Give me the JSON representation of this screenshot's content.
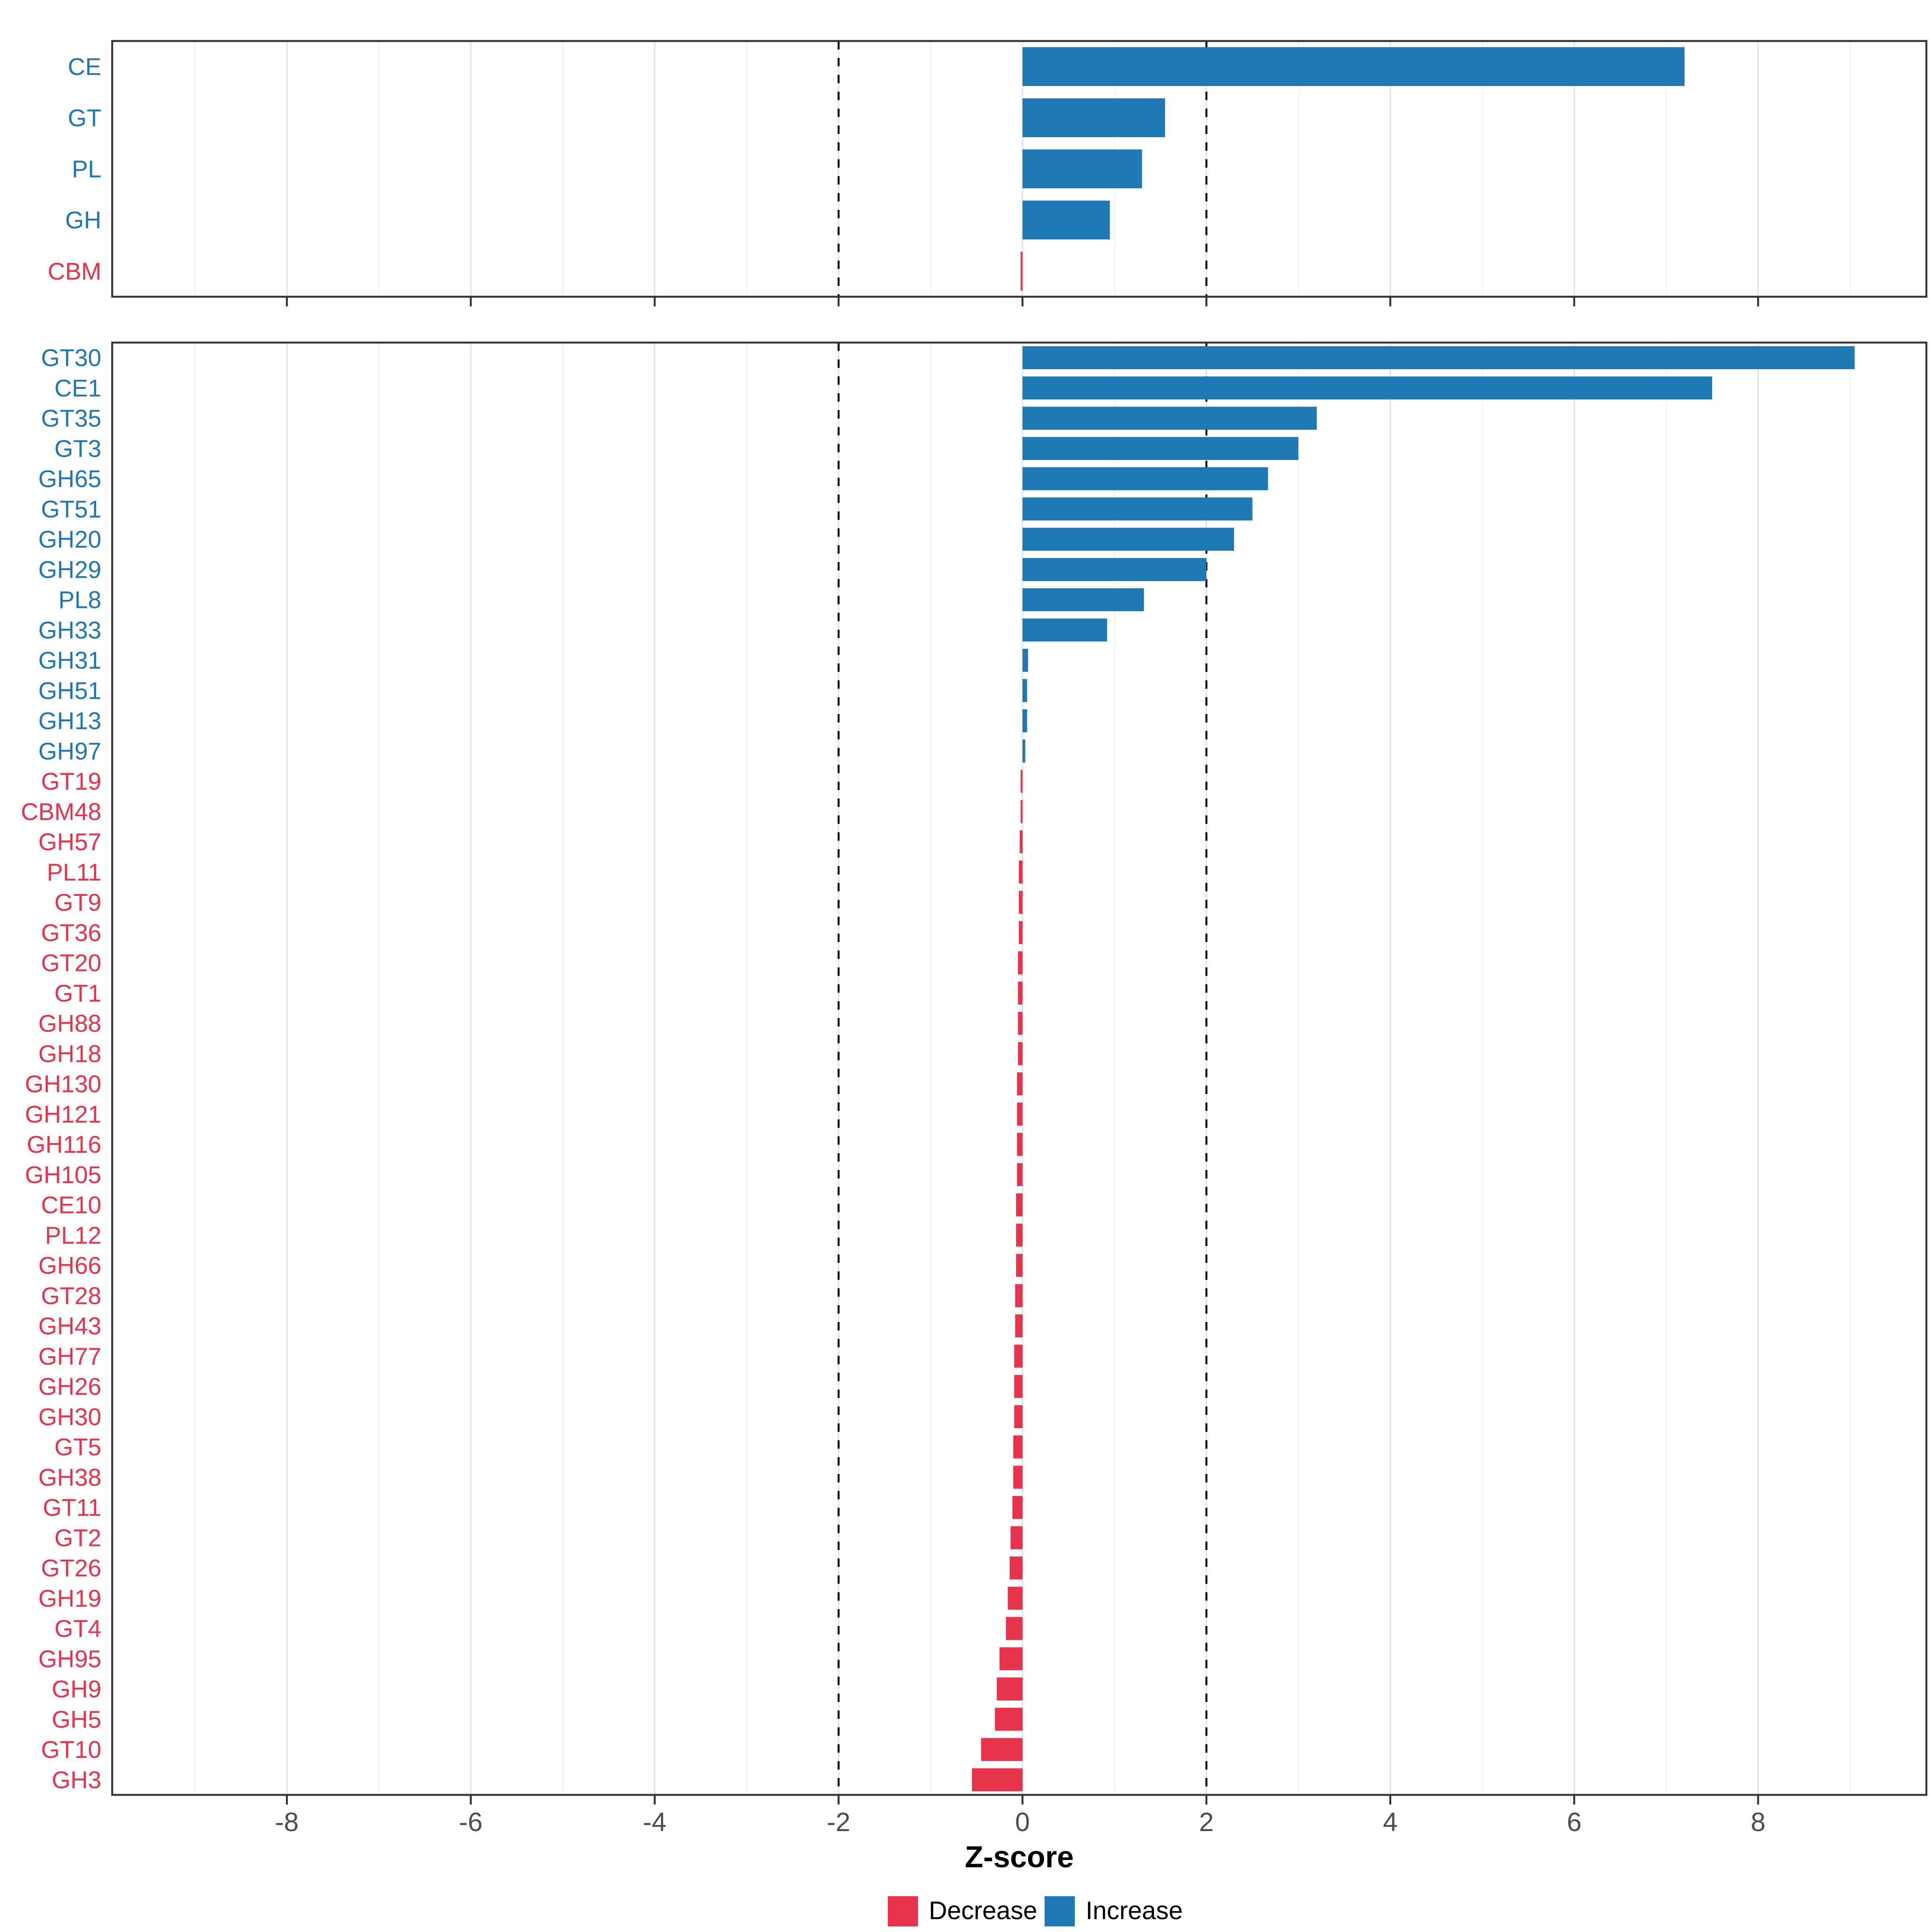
{
  "chart_data": {
    "type": "bar",
    "orientation": "horizontal",
    "title": "",
    "xlabel": "Z-score",
    "x_ticks": [
      -8,
      -6,
      -4,
      -2,
      0,
      2,
      4,
      6,
      8
    ],
    "xlim": [
      -9.9,
      9.83
    ],
    "reference_lines": [
      -2,
      2
    ],
    "grid": true,
    "legend_position": "bottom",
    "colors": {
      "increase": "#1F77B4",
      "decrease": "#E8334C",
      "reference": "#000000",
      "grid_major": "#E4E4E4",
      "grid_minor": "#F2F2F2",
      "border": "#333333",
      "tick": "#333333",
      "tick_label": "#4D4D4D",
      "title_text": "#000000"
    },
    "legend": {
      "items": [
        {
          "label": "Decrease",
          "key": "decrease"
        },
        {
          "label": "Increase",
          "key": "increase"
        }
      ]
    },
    "panels": [
      {
        "name": "cazyme-class-panel",
        "categories": [
          "CE",
          "GT",
          "PL",
          "GH",
          "CBM"
        ],
        "values": [
          7.2,
          1.55,
          1.3,
          0.95,
          -0.02
        ]
      },
      {
        "name": "cazyme-family-panel",
        "categories": [
          "GT30",
          "CE1",
          "GT35",
          "GT3",
          "GH65",
          "GT51",
          "GH20",
          "GH29",
          "PL8",
          "GH33",
          "GH31",
          "GH51",
          "GH13",
          "GH97",
          "GT19",
          "CBM48",
          "GH57",
          "PL11",
          "GT9",
          "GT36",
          "GT20",
          "GT1",
          "GH88",
          "GH18",
          "GH130",
          "GH121",
          "GH116",
          "GH105",
          "CE10",
          "PL12",
          "GH66",
          "GT28",
          "GH43",
          "GH77",
          "GH26",
          "GH30",
          "GT5",
          "GH38",
          "GT11",
          "GT2",
          "GT26",
          "GH19",
          "GT4",
          "GH95",
          "GH9",
          "GH5",
          "GT10",
          "GH3"
        ],
        "values": [
          9.05,
          7.5,
          3.2,
          3.0,
          2.67,
          2.5,
          2.3,
          2.0,
          1.32,
          0.92,
          0.06,
          0.05,
          0.05,
          0.03,
          -0.02,
          -0.02,
          -0.03,
          -0.04,
          -0.04,
          -0.04,
          -0.05,
          -0.05,
          -0.05,
          -0.05,
          -0.06,
          -0.06,
          -0.06,
          -0.06,
          -0.07,
          -0.07,
          -0.07,
          -0.08,
          -0.08,
          -0.09,
          -0.09,
          -0.09,
          -0.1,
          -0.1,
          -0.11,
          -0.13,
          -0.14,
          -0.16,
          -0.18,
          -0.25,
          -0.28,
          -0.3,
          -0.45,
          -0.55
        ]
      }
    ]
  }
}
